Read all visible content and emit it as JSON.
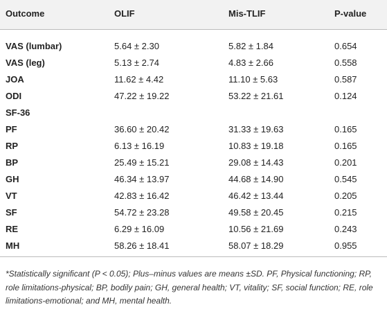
{
  "table": {
    "header": [
      "Outcome",
      "OLIF",
      "Mis-TLIF",
      "P-value"
    ],
    "rows": [
      [
        "VAS (lumbar)",
        "5.64 ± 2.30",
        "5.82 ± 1.84",
        "0.654"
      ],
      [
        "VAS (leg)",
        "5.13 ± 2.74",
        "4.83 ± 2.66",
        "0.558"
      ],
      [
        "JOA",
        "11.62 ± 4.42",
        "11.10 ± 5.63",
        "0.587"
      ],
      [
        "ODI",
        "47.22 ± 19.22",
        "53.22 ± 21.61",
        "0.124"
      ],
      [
        "SF-36"
      ],
      [
        "PF",
        "36.60 ± 20.42",
        "31.33 ± 19.63",
        "0.165"
      ],
      [
        "RP",
        "6.13 ± 16.19",
        "10.83 ± 19.18",
        "0.165"
      ],
      [
        "BP",
        "25.49 ± 15.21",
        "29.08 ± 14.43",
        "0.201"
      ],
      [
        "GH",
        "46.34 ± 13.97",
        "44.68 ± 14.90",
        "0.545"
      ],
      [
        "VT",
        "42.83 ± 16.42",
        "46.42 ± 13.44",
        "0.205"
      ],
      [
        "SF",
        "54.72 ± 23.28",
        "49.58 ± 20.45",
        "0.215"
      ],
      [
        "RE",
        "6.29 ± 16.09",
        "10.56 ± 21.69",
        "0.243"
      ],
      [
        "MH",
        "58.26 ± 18.41",
        "58.07 ± 18.29",
        "0.955"
      ]
    ]
  },
  "footnote": "*Statistically significant (P < 0.05); Plus–minus values are means ±SD. PF, Physical functioning; RP, role limitations-physical; BP, bodily pain; GH, general health; VT, vitality; SF, social function; RE, role limitations-emotional; and MH, mental health."
}
